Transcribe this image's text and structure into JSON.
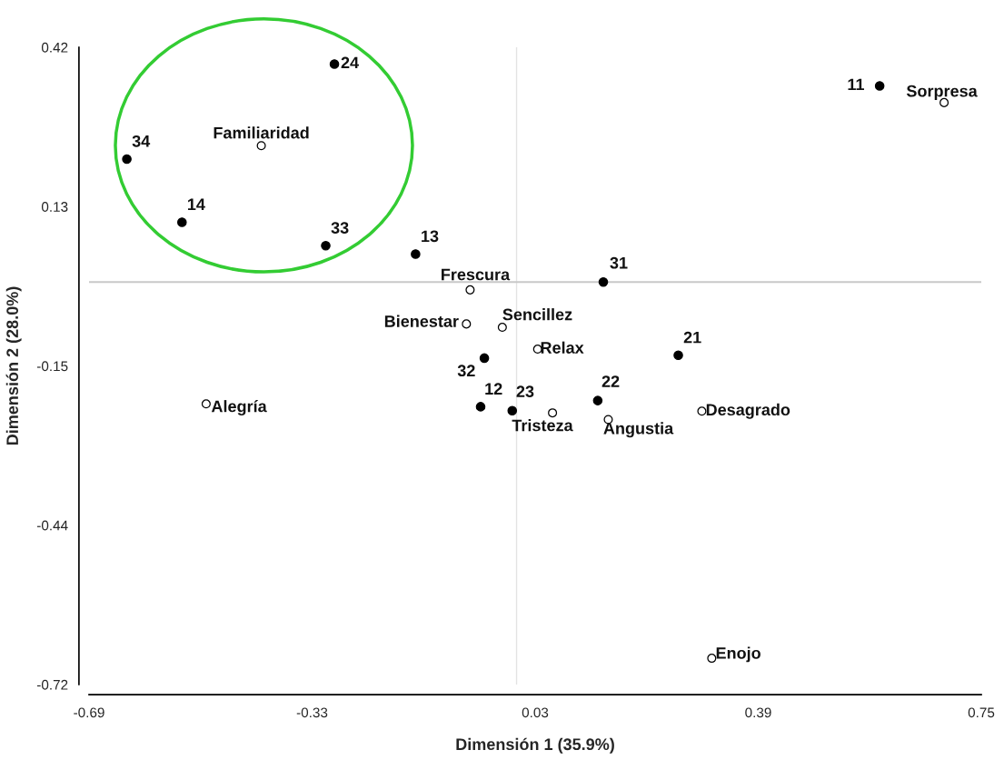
{
  "chart_data": {
    "type": "scatter",
    "xlabel": "Dimensión 1 (35.9%)",
    "ylabel": "Dimensión 2 (28.0%)",
    "xlim": [
      -0.69,
      0.75
    ],
    "xticks": [
      -0.69,
      -0.33,
      0.03,
      0.39,
      0.75
    ],
    "ylim": [
      -0.72,
      0.42
    ],
    "yticks": [
      -0.72,
      {
        "value": -0.435,
        "label": "-0.44"
      },
      -0.15,
      {
        "value": 0.135,
        "label": "0.13"
      },
      0.42
    ],
    "grid": false,
    "legend": false,
    "marker": "circle",
    "ref_lines": [
      {
        "axis": "x",
        "value": 0,
        "color": "#e3e3e3"
      },
      {
        "axis": "y",
        "value": 0,
        "color": "#c8c8c8"
      }
    ],
    "series": [
      {
        "color": "#000000",
        "x": [
          -0.294,
          -0.629,
          -0.54,
          -0.308,
          -0.163,
          0.14,
          0.261,
          -0.052,
          -0.058,
          -0.007,
          0.131,
          0.586
        ],
        "values": [
          0.39,
          0.22,
          0.107,
          0.065,
          0.05,
          0.0,
          -0.131,
          -0.136,
          -0.223,
          -0.23,
          -0.212,
          0.351
        ]
      },
      {
        "color": "#000000",
        "x": [
          -0.412,
          -0.075,
          -0.081,
          -0.023,
          0.034,
          0.058,
          0.148,
          0.299,
          0.69,
          -0.501,
          0.315
        ],
        "values": [
          0.244,
          -0.014,
          -0.075,
          -0.081,
          -0.12,
          -0.234,
          -0.246,
          -0.231,
          0.321,
          -0.218,
          -0.673
        ]
      }
    ],
    "annotations": [
      {
        "text": "24",
        "x": -0.294,
        "y": 0.39
      },
      {
        "text": "34",
        "x": -0.629,
        "y": 0.22
      },
      {
        "text": "14",
        "x": -0.54,
        "y": 0.107
      },
      {
        "text": "33",
        "x": -0.308,
        "y": 0.065
      },
      {
        "text": "13",
        "x": -0.163,
        "y": 0.05
      },
      {
        "text": "31",
        "x": 0.14,
        "y": 0.0
      },
      {
        "text": "21",
        "x": 0.261,
        "y": -0.131
      },
      {
        "text": "32",
        "x": -0.052,
        "y": -0.136
      },
      {
        "text": "12",
        "x": -0.058,
        "y": -0.223
      },
      {
        "text": "23",
        "x": -0.007,
        "y": -0.23
      },
      {
        "text": "22",
        "x": 0.131,
        "y": -0.212
      },
      {
        "text": "11",
        "x": 0.586,
        "y": 0.351
      },
      {
        "text": "Familiaridad",
        "x": -0.412,
        "y": 0.244
      },
      {
        "text": "Frescura",
        "x": -0.075,
        "y": -0.014
      },
      {
        "text": "Bienestar",
        "x": -0.081,
        "y": -0.075
      },
      {
        "text": "Sencillez",
        "x": -0.023,
        "y": -0.081
      },
      {
        "text": "Relax",
        "x": 0.034,
        "y": -0.12
      },
      {
        "text": "Tristeza",
        "x": 0.058,
        "y": -0.234
      },
      {
        "text": "Angustia",
        "x": 0.148,
        "y": -0.246
      },
      {
        "text": "Desagrado",
        "x": 0.299,
        "y": -0.231
      },
      {
        "text": "Sorpresa",
        "x": 0.69,
        "y": 0.321
      },
      {
        "text": "Alegría",
        "x": -0.501,
        "y": -0.218
      },
      {
        "text": "Enojo",
        "x": 0.315,
        "y": -0.673
      }
    ]
  }
}
